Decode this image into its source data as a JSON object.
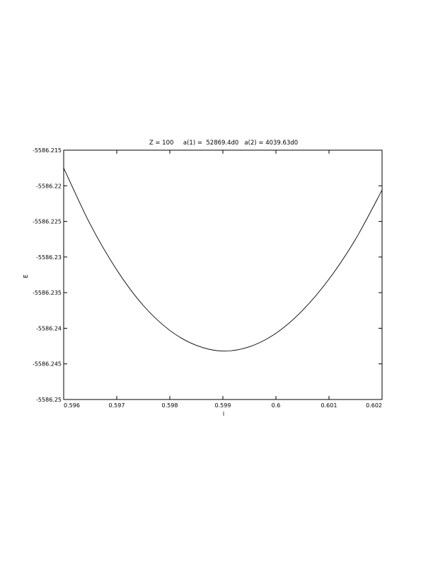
{
  "chart_data": {
    "type": "line",
    "title": "Z = 100     a(1) =  52869.4d0   a(2) = 4039.63d0",
    "xlabel": "l",
    "ylabel": "E",
    "xlim": [
      0.596,
      0.602
    ],
    "ylim": [
      -5586.25,
      -5586.215
    ],
    "xticks": [
      "0.596",
      "0.597",
      "0.598",
      "0.599",
      "0.6",
      "0.601",
      "0.602"
    ],
    "xtick_values": [
      0.596,
      0.597,
      0.598,
      0.599,
      0.6,
      0.601,
      0.602
    ],
    "yticks": [
      "-5586.215",
      "-5586.22",
      "-5586.225",
      "-5586.23",
      "-5586.235",
      "-5586.24",
      "-5586.245",
      "-5586.25"
    ],
    "ytick_values": [
      -5586.215,
      -5586.22,
      -5586.225,
      -5586.23,
      -5586.235,
      -5586.24,
      -5586.245,
      -5586.25
    ],
    "grid": false,
    "line_color": "#000000",
    "series": [
      {
        "x": [
          0.596,
          0.5965,
          0.597,
          0.5975,
          0.598,
          0.5985,
          0.599,
          0.5995,
          0.6,
          0.6005,
          0.601,
          0.6015,
          0.602
        ],
        "y": [
          -5586.2175,
          -5586.2254,
          -5586.2318,
          -5586.2368,
          -5586.2403,
          -5586.2424,
          -5586.2432,
          -5586.2426,
          -5586.2407,
          -5586.2375,
          -5586.2331,
          -5586.2275,
          -5586.2206
        ]
      }
    ]
  }
}
